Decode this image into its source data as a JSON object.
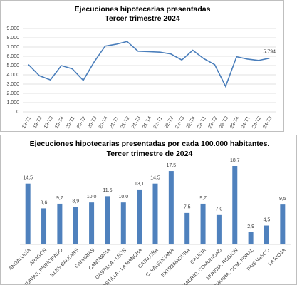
{
  "chart_data": [
    {
      "type": "line",
      "title": "Ejecuciones hipotecarias presentadas",
      "subtitle": "Tercer trimestre  2024",
      "categories": [
        "19-T1",
        "19-T2",
        "19-T3",
        "19-T4",
        "20-T1",
        "20-T2",
        "20-T3",
        "20-T4",
        "21-T1",
        "21-T2",
        "21-T3",
        "21-T4",
        "22-T1",
        "22-T2",
        "22-T3",
        "22-T4",
        "23-T1",
        "23-T2",
        "23-T3",
        "23-T4",
        "24-T1",
        "24-T2",
        "24-T3"
      ],
      "values": [
        5100,
        3900,
        3450,
        5000,
        4650,
        3400,
        5400,
        7100,
        7300,
        7600,
        6550,
        6500,
        6450,
        6250,
        5600,
        6650,
        5750,
        5100,
        2750,
        5950,
        5700,
        5550,
        5794
      ],
      "value_labels": [
        null,
        null,
        null,
        null,
        null,
        null,
        null,
        null,
        null,
        null,
        null,
        null,
        null,
        null,
        null,
        null,
        null,
        null,
        null,
        null,
        null,
        null,
        "5.794"
      ],
      "color": "#4a7ebb",
      "ylim": [
        0,
        9000
      ],
      "yticks": [
        0,
        {
          "value": 1000,
          "label": "1.000"
        },
        {
          "value": 2000,
          "label": "2.000"
        },
        {
          "value": 3000,
          "label": "3.000"
        },
        {
          "value": 4000,
          "label": "4.000"
        },
        {
          "value": 5000,
          "label": "5.000"
        },
        {
          "value": 6000,
          "label": "6.000"
        },
        {
          "value": 7000,
          "label": "7.000"
        },
        {
          "value": 8000,
          "label": "8.000"
        },
        {
          "value": 9000,
          "label": "9.000"
        }
      ],
      "grid": true
    },
    {
      "type": "bar",
      "title": "Ejecuciones hipotecarias presentadas por cada 100.000 habitantes.",
      "subtitle": "Tercer trimestre de 2024",
      "categories": [
        "ANDALUCÍA",
        "ARAGÓN",
        "ASTURIAS, PRINCIPADO",
        "ILLES BALEARS",
        "CANARIAS",
        "CANTABRIA",
        "CASTILLA - LEÓN",
        "CASTILLA - LA MANCHA",
        "CATALUÑA",
        "C. VALENCIANA",
        "EXTREMADURA",
        "GALICIA",
        "MADRID, COMUNIDAD",
        "MURCIA, REGIÓN",
        "NAVARRA, COM. FORAL",
        "PAÍS VASCO",
        "LA RIOJA"
      ],
      "values": [
        14.5,
        8.6,
        9.7,
        8.9,
        10.0,
        11.5,
        10.0,
        13.1,
        14.5,
        17.5,
        7.5,
        9.7,
        7.0,
        18.7,
        2.9,
        4.5,
        9.5
      ],
      "value_labels": [
        "14,5",
        "8,6",
        "9,7",
        "8,9",
        "10,0",
        "11,5",
        "10,0",
        "13,1",
        "14,5",
        "17,5",
        "7,5",
        "9,7",
        "7,0",
        "18,7",
        "2,9",
        "4,5",
        "9,5"
      ],
      "color": "#4f81bd"
    }
  ]
}
